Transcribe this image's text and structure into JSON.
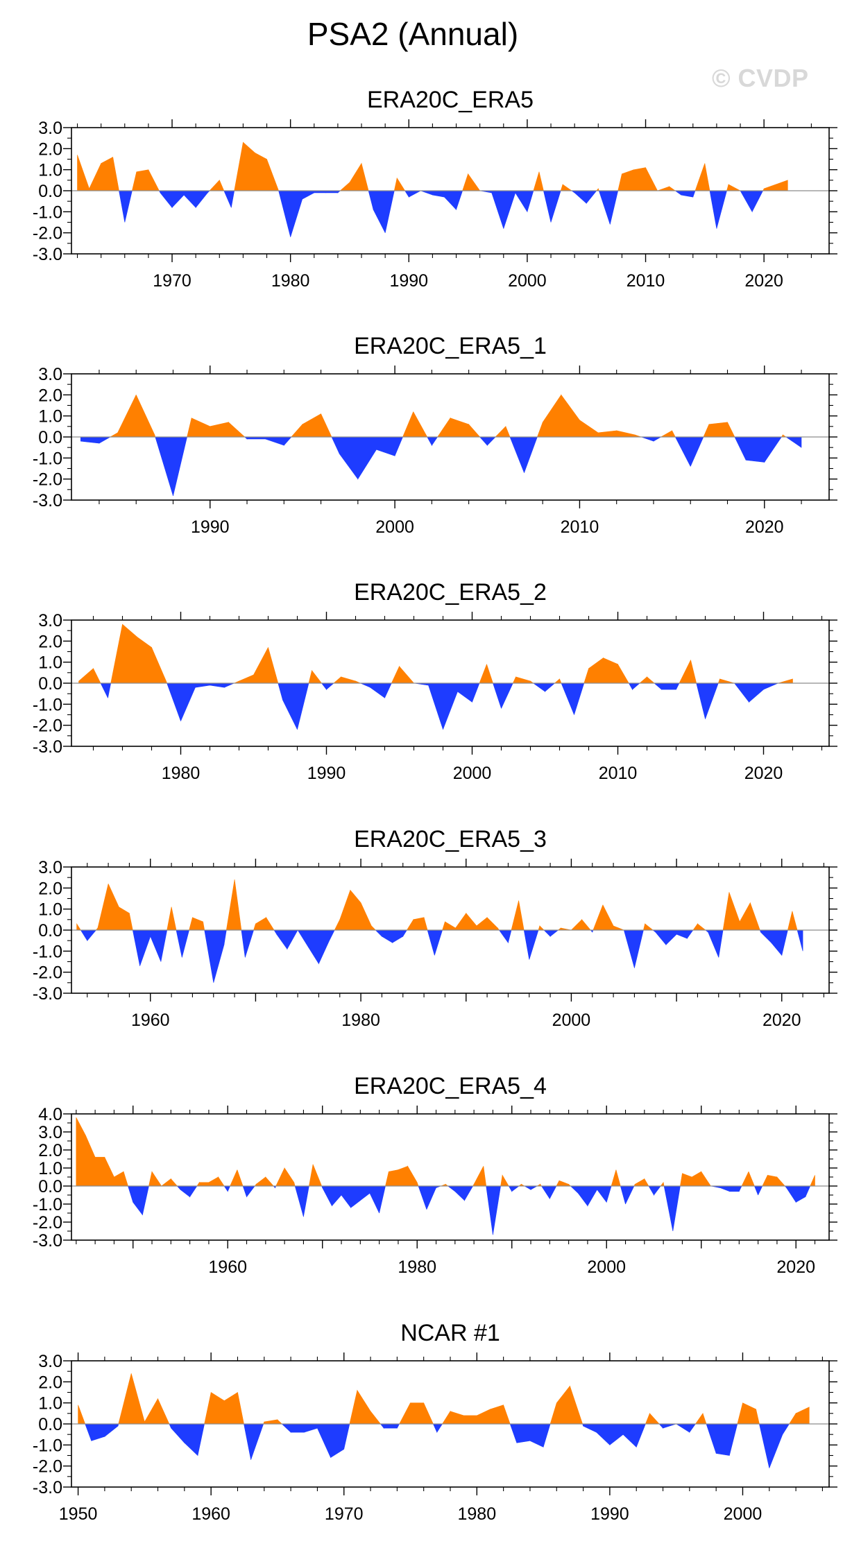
{
  "title": "PSA2 (Annual)",
  "watermark": "© CVDP",
  "colors": {
    "positive": "#ff8000",
    "negative": "#1e3cff",
    "axis": "#000000"
  },
  "chart_data": [
    {
      "type": "area",
      "title": "ERA20C_ERA5",
      "xlim": [
        1961.5,
        2025.5
      ],
      "ylim": [
        -3,
        3
      ],
      "yticks": [
        3,
        2,
        1,
        0,
        -1,
        -2,
        -3
      ],
      "ytick_labels": [
        "3.0",
        "2.0",
        "1.0",
        "0.0",
        "-1.0",
        "-2.0",
        "-3.0"
      ],
      "xticks": [
        1970,
        1980,
        1990,
        2000,
        2010,
        2020
      ],
      "x": [
        1962,
        1963,
        1964,
        1965,
        1966,
        1967,
        1968,
        1969,
        1970,
        1971,
        1972,
        1973,
        1974,
        1975,
        1976,
        1977,
        1978,
        1979,
        1980,
        1981,
        1982,
        1983,
        1984,
        1985,
        1986,
        1987,
        1988,
        1989,
        1990,
        1991,
        1992,
        1993,
        1994,
        1995,
        1996,
        1997,
        1998,
        1999,
        2000,
        2001,
        2002,
        2003,
        2004,
        2005,
        2006,
        2007,
        2008,
        2009,
        2010,
        2011,
        2012,
        2013,
        2014,
        2015,
        2016,
        2017,
        2018,
        2019,
        2020,
        2021,
        2022
      ],
      "values": [
        1.7,
        0.1,
        1.3,
        1.6,
        -1.5,
        0.9,
        1.0,
        -0.1,
        -0.8,
        -0.2,
        -0.8,
        -0.1,
        0.5,
        -0.8,
        2.3,
        1.8,
        1.5,
        0.0,
        -2.2,
        -0.4,
        -0.1,
        -0.1,
        -0.1,
        0.4,
        1.3,
        -0.9,
        -2.0,
        0.6,
        -0.3,
        0.0,
        -0.2,
        -0.3,
        -0.9,
        0.8,
        0.0,
        -0.1,
        -1.8,
        -0.1,
        -1.0,
        0.9,
        -1.5,
        0.3,
        -0.1,
        -0.6,
        0.1,
        -1.6,
        0.8,
        1.0,
        1.1,
        0.0,
        0.2,
        -0.2,
        -0.3,
        1.3,
        -1.8,
        0.3,
        0.0,
        -1.0,
        0.1,
        0.3,
        0.5
      ]
    },
    {
      "type": "area",
      "title": "ERA20C_ERA5_1",
      "xlim": [
        1982.5,
        2023.5
      ],
      "ylim": [
        -3,
        3
      ],
      "yticks": [
        3,
        2,
        1,
        0,
        -1,
        -2,
        -3
      ],
      "ytick_labels": [
        "3.0",
        "2.0",
        "1.0",
        "0.0",
        "-1.0",
        "-2.0",
        "-3.0"
      ],
      "xticks": [
        1990,
        2000,
        2010,
        2020
      ],
      "x": [
        1983,
        1984,
        1985,
        1986,
        1987,
        1988,
        1989,
        1990,
        1991,
        1992,
        1993,
        1994,
        1995,
        1996,
        1997,
        1998,
        1999,
        2000,
        2001,
        2002,
        2003,
        2004,
        2005,
        2006,
        2007,
        2008,
        2009,
        2010,
        2011,
        2012,
        2013,
        2014,
        2015,
        2016,
        2017,
        2018,
        2019,
        2020,
        2021,
        2022
      ],
      "values": [
        -0.2,
        -0.3,
        0.2,
        2.0,
        0.1,
        -2.8,
        0.9,
        0.5,
        0.7,
        -0.1,
        -0.1,
        -0.4,
        0.6,
        1.1,
        -0.8,
        -2.0,
        -0.6,
        -0.9,
        1.2,
        -0.4,
        0.9,
        0.6,
        -0.4,
        0.5,
        -1.7,
        0.7,
        2.0,
        0.8,
        0.2,
        0.3,
        0.1,
        -0.2,
        0.3,
        -1.4,
        0.6,
        0.7,
        -1.1,
        -1.2,
        0.1,
        -0.5
      ]
    },
    {
      "type": "area",
      "title": "ERA20C_ERA5_2",
      "xlim": [
        1972.5,
        2024.5
      ],
      "ylim": [
        -3,
        3
      ],
      "yticks": [
        3,
        2,
        1,
        0,
        -1,
        -2,
        -3
      ],
      "ytick_labels": [
        "3.0",
        "2.0",
        "1.0",
        "0.0",
        "-1.0",
        "-2.0",
        "-3.0"
      ],
      "xticks": [
        1980,
        1990,
        2000,
        2010,
        2020
      ],
      "x": [
        1973,
        1974,
        1975,
        1976,
        1977,
        1978,
        1979,
        1980,
        1981,
        1982,
        1983,
        1984,
        1985,
        1986,
        1987,
        1988,
        1989,
        1990,
        1991,
        1992,
        1993,
        1994,
        1995,
        1996,
        1997,
        1998,
        1999,
        2000,
        2001,
        2002,
        2003,
        2004,
        2005,
        2006,
        2007,
        2008,
        2009,
        2010,
        2011,
        2012,
        2013,
        2014,
        2015,
        2016,
        2017,
        2018,
        2019,
        2020,
        2021,
        2022
      ],
      "values": [
        0.1,
        0.7,
        -0.7,
        2.8,
        2.2,
        1.7,
        0.1,
        -1.8,
        -0.2,
        -0.1,
        -0.2,
        0.1,
        0.4,
        1.7,
        -0.8,
        -2.2,
        0.6,
        -0.3,
        0.3,
        0.1,
        -0.2,
        -0.7,
        0.8,
        0.0,
        -0.1,
        -2.2,
        -0.4,
        -0.9,
        0.9,
        -1.2,
        0.3,
        0.1,
        -0.4,
        0.2,
        -1.5,
        0.7,
        1.2,
        0.9,
        -0.3,
        0.3,
        -0.3,
        -0.3,
        1.1,
        -1.7,
        0.2,
        0.0,
        -0.9,
        -0.3,
        0.0,
        0.2
      ]
    },
    {
      "type": "area",
      "title": "ERA20C_ERA5_3",
      "xlim": [
        1952.5,
        2024.5
      ],
      "ylim": [
        -3,
        3
      ],
      "yticks": [
        3,
        2,
        1,
        0,
        -1,
        -2,
        -3
      ],
      "ytick_labels": [
        "3.0",
        "2.0",
        "1.0",
        "0.0",
        "-1.0",
        "-2.0",
        "-3.0"
      ],
      "xticks": [
        1960,
        1980,
        2000,
        2020
      ],
      "x": [
        1953,
        1954,
        1955,
        1956,
        1957,
        1958,
        1959,
        1960,
        1961,
        1962,
        1963,
        1964,
        1965,
        1966,
        1967,
        1968,
        1969,
        1970,
        1971,
        1972,
        1973,
        1974,
        1975,
        1976,
        1977,
        1978,
        1979,
        1980,
        1981,
        1982,
        1983,
        1984,
        1985,
        1986,
        1987,
        1988,
        1989,
        1990,
        1991,
        1992,
        1993,
        1994,
        1995,
        1996,
        1997,
        1998,
        1999,
        2000,
        2001,
        2002,
        2003,
        2004,
        2005,
        2006,
        2007,
        2008,
        2009,
        2010,
        2011,
        2012,
        2013,
        2014,
        2015,
        2016,
        2017,
        2018,
        2019,
        2020,
        2021,
        2022
      ],
      "values": [
        0.3,
        -0.5,
        0.1,
        2.2,
        1.1,
        0.8,
        -1.7,
        -0.3,
        -1.5,
        1.1,
        -1.3,
        0.6,
        0.4,
        -2.5,
        -0.7,
        2.4,
        -1.3,
        0.3,
        0.6,
        -0.2,
        -0.9,
        0.0,
        -0.8,
        -1.6,
        -0.5,
        0.5,
        1.9,
        1.3,
        0.2,
        -0.3,
        -0.6,
        -0.3,
        0.5,
        0.6,
        -1.2,
        0.4,
        0.1,
        0.8,
        0.2,
        0.6,
        0.1,
        -0.6,
        1.4,
        -1.4,
        0.2,
        -0.3,
        0.1,
        0.0,
        0.5,
        -0.1,
        1.2,
        0.2,
        0.0,
        -1.8,
        0.3,
        -0.1,
        -0.7,
        -0.2,
        -0.4,
        0.3,
        -0.1,
        -1.3,
        1.8,
        0.4,
        1.3,
        -0.1,
        -0.6,
        -1.2,
        0.9,
        -1.0
      ]
    },
    {
      "type": "area",
      "title": "ERA20C_ERA5_4",
      "xlim": [
        1943.5,
        2023.5
      ],
      "ylim": [
        -3,
        4
      ],
      "yticks": [
        4,
        3,
        2,
        1,
        0,
        -1,
        -2,
        -3
      ],
      "ytick_labels": [
        "4.0",
        "3.0",
        "2.0",
        "1.0",
        "0.0",
        "-1.0",
        "-2.0",
        "-3.0"
      ],
      "xticks": [
        1960,
        1980,
        2000,
        2020
      ],
      "x": [
        1944,
        1945,
        1946,
        1947,
        1948,
        1949,
        1950,
        1951,
        1952,
        1953,
        1954,
        1955,
        1956,
        1957,
        1958,
        1959,
        1960,
        1961,
        1962,
        1963,
        1964,
        1965,
        1966,
        1967,
        1968,
        1969,
        1970,
        1971,
        1972,
        1973,
        1974,
        1975,
        1976,
        1977,
        1978,
        1979,
        1980,
        1981,
        1982,
        1983,
        1984,
        1985,
        1986,
        1987,
        1988,
        1989,
        1990,
        1991,
        1992,
        1993,
        1994,
        1995,
        1996,
        1997,
        1998,
        1999,
        2000,
        2001,
        2002,
        2003,
        2004,
        2005,
        2006,
        2007,
        2008,
        2009,
        2010,
        2011,
        2012,
        2013,
        2014,
        2015,
        2016,
        2017,
        2018,
        2019,
        2020,
        2021,
        2022
      ],
      "values": [
        3.8,
        2.8,
        1.6,
        1.6,
        0.5,
        0.8,
        -0.9,
        -1.6,
        0.8,
        0.0,
        0.4,
        -0.2,
        -0.6,
        0.2,
        0.2,
        0.5,
        -0.3,
        0.9,
        -0.6,
        0.1,
        0.5,
        -0.1,
        1.0,
        0.2,
        -1.7,
        1.2,
        -0.1,
        -1.1,
        -0.5,
        -1.2,
        -0.8,
        -0.4,
        -1.5,
        0.8,
        0.9,
        1.1,
        0.2,
        -1.3,
        -0.1,
        0.1,
        -0.3,
        -0.8,
        0.1,
        1.1,
        -2.7,
        0.6,
        -0.3,
        0.1,
        -0.2,
        0.1,
        -0.7,
        0.3,
        0.1,
        -0.4,
        -1.1,
        -0.2,
        -0.9,
        0.9,
        -1.0,
        0.1,
        0.4,
        -0.5,
        0.2,
        -2.5,
        0.7,
        0.5,
        0.8,
        0.0,
        -0.1,
        -0.3,
        -0.3,
        0.8,
        -0.5,
        0.6,
        0.5,
        -0.1,
        -0.9,
        -0.6,
        0.6
      ]
    },
    {
      "type": "area",
      "title": "NCAR #1",
      "xlim": [
        1949.5,
        2006.5
      ],
      "ylim": [
        -3,
        3
      ],
      "yticks": [
        3,
        2,
        1,
        0,
        -1,
        -2,
        -3
      ],
      "ytick_labels": [
        "3.0",
        "2.0",
        "1.0",
        "0.0",
        "-1.0",
        "-2.0",
        "-3.0"
      ],
      "xticks": [
        1950,
        1960,
        1970,
        1980,
        1990,
        2000
      ],
      "x": [
        1950,
        1951,
        1952,
        1953,
        1954,
        1955,
        1956,
        1957,
        1958,
        1959,
        1960,
        1961,
        1962,
        1963,
        1964,
        1965,
        1966,
        1967,
        1968,
        1969,
        1970,
        1971,
        1972,
        1973,
        1974,
        1975,
        1976,
        1977,
        1978,
        1979,
        1980,
        1981,
        1982,
        1983,
        1984,
        1985,
        1986,
        1987,
        1988,
        1989,
        1990,
        1991,
        1992,
        1993,
        1994,
        1995,
        1996,
        1997,
        1998,
        1999,
        2000,
        2001,
        2002,
        2003,
        2004,
        2005
      ],
      "values": [
        0.9,
        -0.8,
        -0.6,
        -0.1,
        2.4,
        0.1,
        1.2,
        -0.2,
        -0.9,
        -1.5,
        1.5,
        1.1,
        1.5,
        -1.7,
        0.1,
        0.2,
        -0.4,
        -0.4,
        -0.2,
        -1.6,
        -1.2,
        1.6,
        0.6,
        -0.2,
        -0.2,
        1.0,
        1.0,
        -0.4,
        0.6,
        0.4,
        0.4,
        0.7,
        0.9,
        -0.9,
        -0.8,
        -1.1,
        1.0,
        1.8,
        -0.1,
        -0.4,
        -1.0,
        -0.5,
        -1.1,
        0.5,
        -0.2,
        0.0,
        -0.4,
        0.5,
        -1.4,
        -1.5,
        1.0,
        0.7,
        -2.1,
        -0.5,
        0.5,
        0.8
      ]
    }
  ]
}
